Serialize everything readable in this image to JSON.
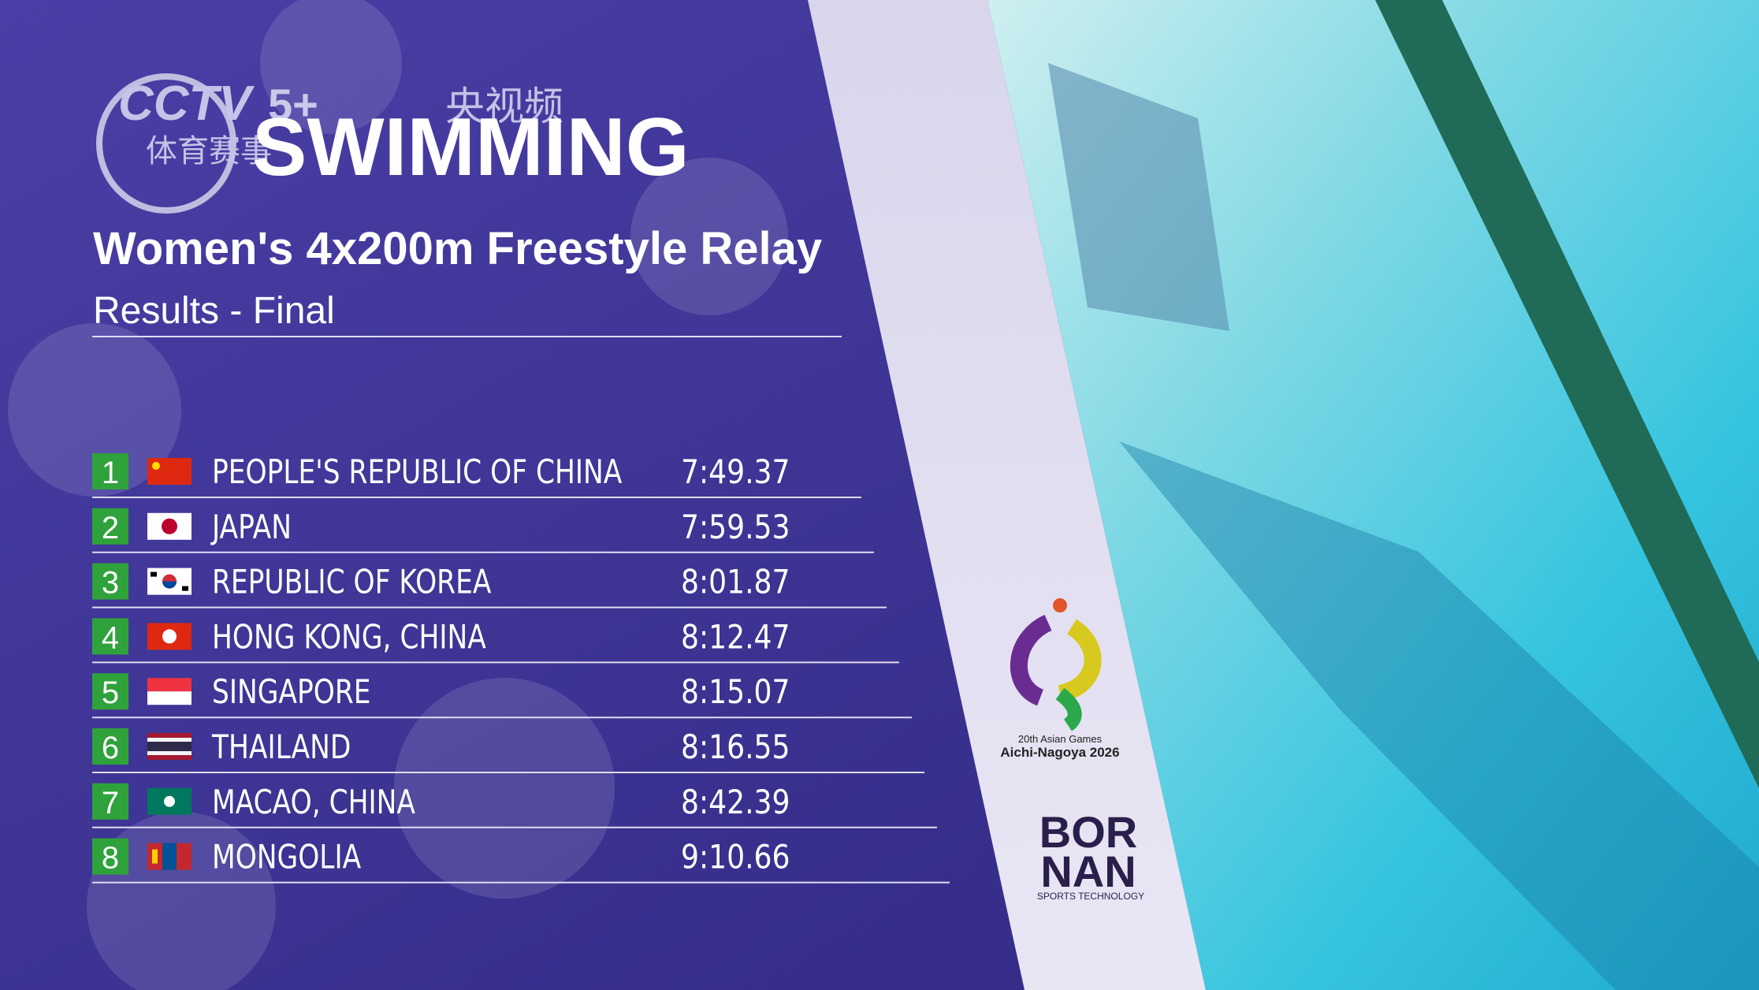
{
  "watermark": {
    "channel": "CCTV",
    "channel_suffix": "5+",
    "app": "央视频",
    "program": "体育赛事"
  },
  "header": {
    "sport": "SWIMMING",
    "event": "Women's 4x200m Freestyle Relay",
    "phase": "Results - Final"
  },
  "table": {
    "rows": [
      {
        "rank": "1",
        "country": "PEOPLE'S REPUBLIC OF CHINA",
        "time": "7:49.37"
      },
      {
        "rank": "2",
        "country": "JAPAN",
        "time": "7:59.53"
      },
      {
        "rank": "3",
        "country": "REPUBLIC OF KOREA",
        "time": "8:01.87"
      },
      {
        "rank": "4",
        "country": "HONG KONG, CHINA",
        "time": "8:12.47"
      },
      {
        "rank": "5",
        "country": "SINGAPORE",
        "time": "8:15.07"
      },
      {
        "rank": "6",
        "country": "THAILAND",
        "time": "8:16.55"
      },
      {
        "rank": "7",
        "country": "MACAO, CHINA",
        "time": "8:42.39"
      },
      {
        "rank": "8",
        "country": "MONGOLIA",
        "time": "9:10.66"
      }
    ]
  },
  "logos": {
    "games_line1": "20th Asian Games",
    "games_line2": "Aichi-Nagoya 2026",
    "sponsor_line1": "BOR",
    "sponsor_line2": "NAN",
    "sponsor_tagline": "SPORTS TECHNOLOGY"
  }
}
